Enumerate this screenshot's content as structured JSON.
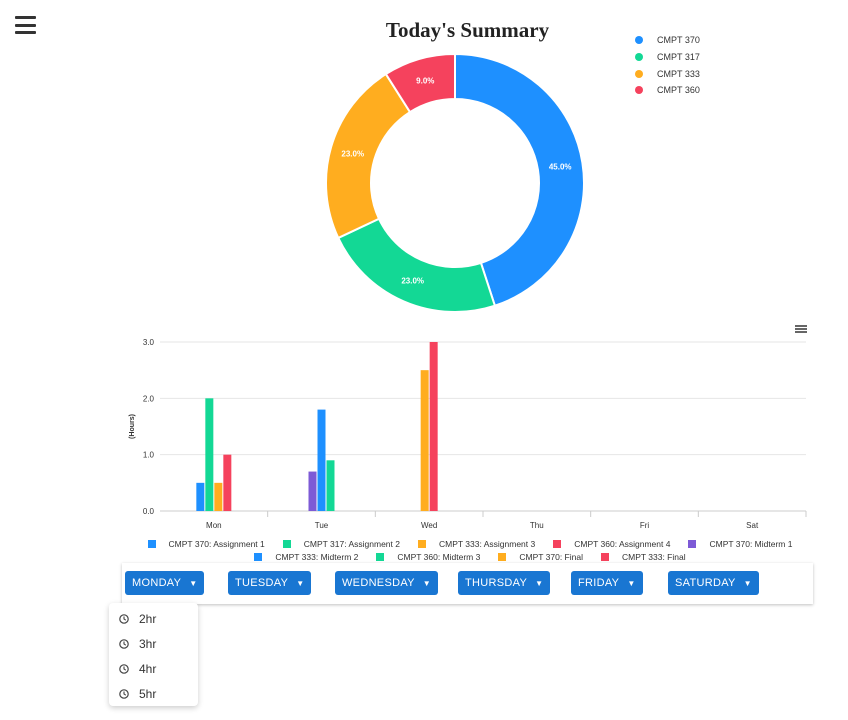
{
  "chart_data": [
    {
      "type": "pie",
      "title": "Today's Summary",
      "categories": [
        "CMPT 370",
        "CMPT 317",
        "CMPT 333",
        "CMPT 360"
      ],
      "values": [
        45.0,
        23.0,
        23.0,
        9.0
      ],
      "labels": [
        "45.0%",
        "23.0%",
        "23.0%",
        "9.0%"
      ],
      "colors": [
        "#1e90ff",
        "#13d895",
        "#ffad1f",
        "#f5425d"
      ],
      "legend": "top-right",
      "style": "donut"
    },
    {
      "type": "bar",
      "categories": [
        "Mon",
        "Tue",
        "Wed",
        "Thu",
        "Fri",
        "Sat"
      ],
      "ylabel": "(Hours)",
      "ylim": [
        0,
        3
      ],
      "yticks": [
        "0.0",
        "1.0",
        "2.0",
        "3.0"
      ],
      "grid": true,
      "legend": "bottom",
      "series": [
        {
          "name": "CMPT 370: Assignment 1",
          "color": "#1e90ff",
          "values": [
            0.5,
            0,
            0,
            0,
            0,
            0
          ]
        },
        {
          "name": "CMPT 317: Assignment 2",
          "color": "#13d895",
          "values": [
            2.0,
            0,
            0,
            0,
            0,
            0
          ]
        },
        {
          "name": "CMPT 333: Assignment 3",
          "color": "#ffad1f",
          "values": [
            0.5,
            0,
            0,
            0,
            0,
            0
          ]
        },
        {
          "name": "CMPT 360: Assignment 4",
          "color": "#f5425d",
          "values": [
            1.0,
            0,
            0,
            0,
            0,
            0
          ]
        },
        {
          "name": "CMPT 370: Midterm 1",
          "color": "#7d5ad6",
          "values": [
            0,
            0.7,
            0,
            0,
            0,
            0
          ]
        },
        {
          "name": "CMPT 333: Midterm 2",
          "color": "#1e90ff",
          "values": [
            0,
            1.8,
            0,
            0,
            0,
            0
          ]
        },
        {
          "name": "CMPT 360: Midterm 3",
          "color": "#13d895",
          "values": [
            0,
            0.9,
            0,
            0,
            0,
            0
          ]
        },
        {
          "name": "CMPT 370: Final",
          "color": "#ffad1f",
          "values": [
            0,
            0,
            2.5,
            0,
            0,
            0
          ]
        },
        {
          "name": "CMPT 333: Final",
          "color": "#f5425d",
          "values": [
            0,
            0,
            3.0,
            0,
            0,
            0
          ]
        }
      ]
    }
  ],
  "menu": {
    "icon": "hamburger-menu-icon"
  },
  "chart_menu": {
    "icon": "chart-menu-icon"
  },
  "days": [
    {
      "label": "MONDAY"
    },
    {
      "label": "TUESDAY"
    },
    {
      "label": "WEDNESDAY"
    },
    {
      "label": "THURSDAY"
    },
    {
      "label": "FRIDAY"
    },
    {
      "label": "SATURDAY"
    }
  ],
  "dropdown": {
    "icon": "clock-icon",
    "options": [
      "2hr",
      "3hr",
      "4hr",
      "5hr"
    ]
  },
  "colors": {
    "button": "#1976d2"
  }
}
